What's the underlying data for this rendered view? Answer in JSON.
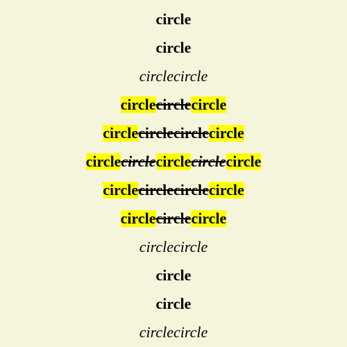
{
  "colors": {
    "background": "#f5f5dc",
    "highlight": "#ffff00",
    "text": "#000000"
  },
  "rows": [
    {
      "segments": [
        {
          "text": "circle",
          "style": "b"
        }
      ]
    },
    {
      "segments": [
        {
          "text": "circle",
          "style": "b"
        }
      ]
    },
    {
      "segments": [
        {
          "text": "circlecircle",
          "style": "i"
        }
      ]
    },
    {
      "segments": [
        {
          "text": "circle",
          "style": "b hl"
        },
        {
          "text": "circle",
          "style": "b st"
        },
        {
          "text": "circle",
          "style": "b hl"
        }
      ]
    },
    {
      "segments": [
        {
          "text": "circle",
          "style": "b hl"
        },
        {
          "text": "circlecircle",
          "style": "b st"
        },
        {
          "text": "circle",
          "style": "b hl"
        }
      ]
    },
    {
      "segments": [
        {
          "text": "circle",
          "style": "b hl"
        },
        {
          "text": "circle",
          "style": "bi st"
        },
        {
          "text": "circle",
          "style": "b hl"
        },
        {
          "text": "circle",
          "style": "bi st"
        },
        {
          "text": "circle",
          "style": "b hl"
        }
      ]
    },
    {
      "segments": [
        {
          "text": "circle",
          "style": "b hl"
        },
        {
          "text": "circlecircle",
          "style": "b st"
        },
        {
          "text": "circle",
          "style": "b hl"
        }
      ]
    },
    {
      "segments": [
        {
          "text": "circle",
          "style": "b hl"
        },
        {
          "text": "circle",
          "style": "b st"
        },
        {
          "text": "circle",
          "style": "b hl"
        }
      ]
    },
    {
      "segments": [
        {
          "text": "circlecircle",
          "style": "i"
        }
      ]
    },
    {
      "segments": [
        {
          "text": "circle",
          "style": "b"
        }
      ]
    },
    {
      "segments": [
        {
          "text": "circle",
          "style": "b"
        }
      ]
    },
    {
      "segments": [
        {
          "text": "circlecircle",
          "style": "i"
        }
      ]
    }
  ]
}
